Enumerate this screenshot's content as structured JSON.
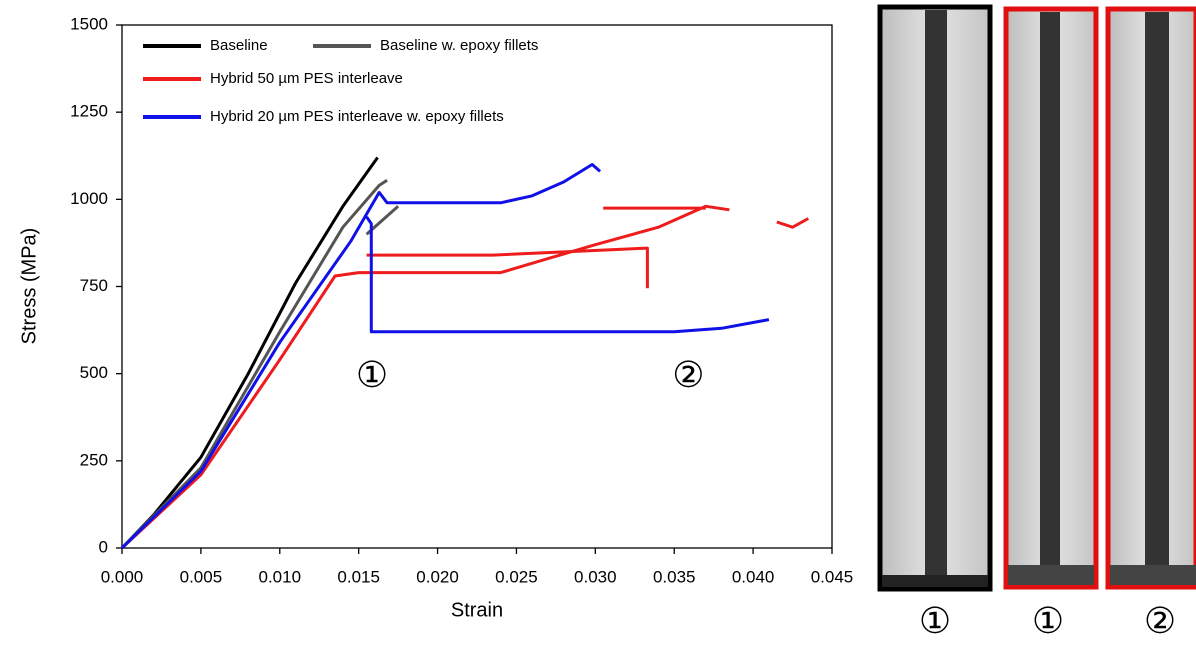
{
  "chart_data": {
    "type": "line",
    "xlabel": "Strain",
    "ylabel": "Stress (MPa)",
    "xlim": [
      0,
      0.045
    ],
    "ylim": [
      0,
      1500
    ],
    "xticks": [
      {
        "value": 0,
        "label": "0.000"
      },
      {
        "value": 0.005,
        "label": "0.005"
      },
      {
        "value": 0.01,
        "label": "0.010"
      },
      {
        "value": 0.015,
        "label": "0.015"
      },
      {
        "value": 0.02,
        "label": "0.020"
      },
      {
        "value": 0.025,
        "label": "0.025"
      },
      {
        "value": 0.03,
        "label": "0.030"
      },
      {
        "value": 0.035,
        "label": "0.035"
      },
      {
        "value": 0.04,
        "label": "0.040"
      },
      {
        "value": 0.045,
        "label": "0.045"
      }
    ],
    "yticks": [
      0,
      250,
      500,
      750,
      1000,
      1250,
      1500
    ],
    "series": [
      {
        "name": "Baseline",
        "color": "#000000",
        "x": [
          0,
          0.002,
          0.005,
          0.008,
          0.011,
          0.014,
          0.0162
        ],
        "values": [
          0,
          95,
          260,
          500,
          760,
          980,
          1120
        ]
      },
      {
        "name": "Baseline w. epoxy fillets",
        "color": "#555555",
        "x": [
          0,
          0.005,
          0.01,
          0.014,
          0.0163,
          0.0168,
          null,
          0.0155,
          0.0175
        ],
        "values": [
          0,
          230,
          620,
          920,
          1040,
          1055,
          null,
          900,
          980
        ]
      },
      {
        "name": "Hybrid 50 µm PES interleave",
        "color": "#ee1c1c",
        "x": [
          0,
          0.005,
          0.01,
          0.0135,
          0.015,
          0.024,
          0.027,
          0.03,
          0.034,
          0.037,
          0.0385,
          null,
          0.0305,
          0.037,
          null,
          0.0415,
          0.0425,
          0.0435,
          null,
          0.0155,
          0.0235,
          0.0333,
          0.0333
        ],
        "values": [
          0,
          210,
          540,
          780,
          790,
          790,
          830,
          870,
          920,
          980,
          970,
          null,
          975,
          975,
          null,
          935,
          920,
          945,
          null,
          840,
          840,
          860,
          745
        ]
      },
      {
        "name": "Hybrid 20 µm PES interleave w. epoxy fillets",
        "color": "#1010e8",
        "x": [
          0,
          0.005,
          0.01,
          0.0145,
          0.0163,
          0.0168,
          0.024,
          0.026,
          0.028,
          0.0298,
          0.0303,
          null,
          0.0155,
          0.0158,
          0.0158,
          0.025,
          0.035,
          0.038,
          0.041
        ],
        "values": [
          0,
          220,
          590,
          880,
          1020,
          990,
          990,
          1010,
          1050,
          1100,
          1080,
          null,
          950,
          930,
          620,
          620,
          620,
          630,
          655
        ]
      }
    ],
    "annotations": [
      {
        "text": "①",
        "x": 0.01585,
        "y": 487
      },
      {
        "text": "②",
        "x": 0.0359,
        "y": 487
      }
    ]
  },
  "photo_labels": [
    "①",
    "①",
    "②"
  ]
}
